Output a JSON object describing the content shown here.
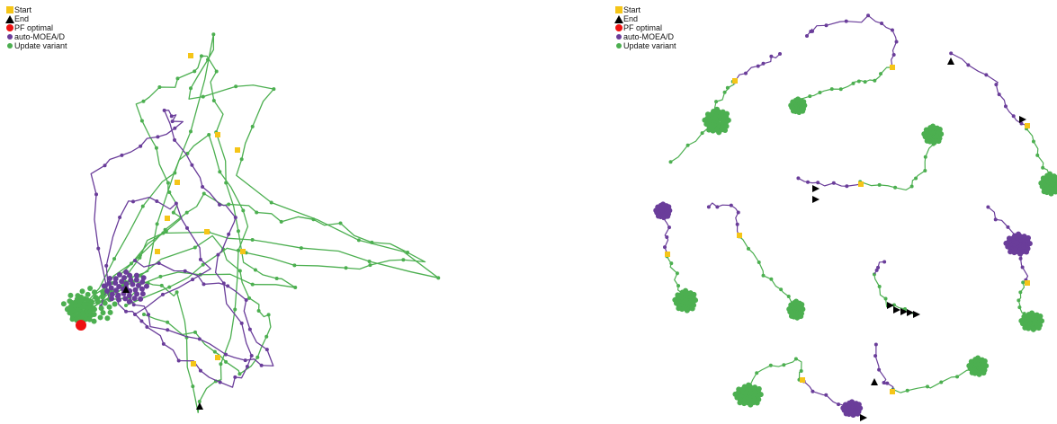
{
  "legend": {
    "start": "Start",
    "end": "End",
    "pf_optimal": "PF optimal",
    "auto_moead": "auto-MOEA/D",
    "update_variant": "Update variant"
  },
  "colors": {
    "start": "#f5c518",
    "end": "#000000",
    "pf_optimal": "#ee1111",
    "auto_moead": "#6a3d9a",
    "update_variant": "#4caf50"
  },
  "icons": {
    "start": "yellow-square",
    "end": "black-triangle",
    "pf_optimal": "red-circle",
    "auto_moead": "purple-dot",
    "update_variant": "green-dot"
  }
}
